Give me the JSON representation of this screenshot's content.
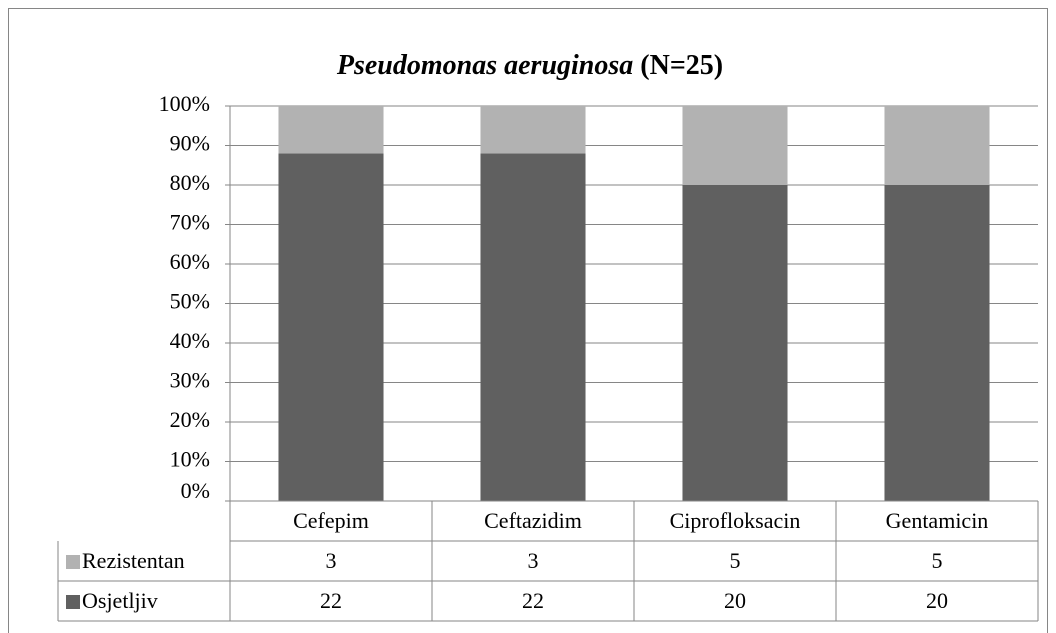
{
  "chart_data": {
    "type": "bar",
    "stacking": "percent",
    "title": [
      "Pseudomonas aeruginosa",
      "(N=25)"
    ],
    "categories": [
      "Cefepim",
      "Ceftazidim",
      "Ciprofloksacin",
      "Gentamicin"
    ],
    "series": [
      {
        "name": "Rezistentan",
        "color": "#b2b2b2",
        "values": [
          3,
          3,
          5,
          5
        ]
      },
      {
        "name": "Osjetljiv",
        "color": "#606060",
        "values": [
          22,
          22,
          20,
          20
        ]
      }
    ],
    "ylim": [
      0,
      100
    ],
    "yticks": [
      {
        "value": 0,
        "label": "0%"
      },
      {
        "value": 10,
        "label": "10%"
      },
      {
        "value": 20,
        "label": "20%"
      },
      {
        "value": 30,
        "label": "30%"
      },
      {
        "value": 40,
        "label": "40%"
      },
      {
        "value": 50,
        "label": "50%"
      },
      {
        "value": 60,
        "label": "60%"
      },
      {
        "value": 70,
        "label": "70%"
      },
      {
        "value": 80,
        "label": "80%"
      },
      {
        "value": 90,
        "label": "90%"
      },
      {
        "value": 100,
        "label": "100%"
      }
    ],
    "grid": true,
    "data_table": true
  }
}
